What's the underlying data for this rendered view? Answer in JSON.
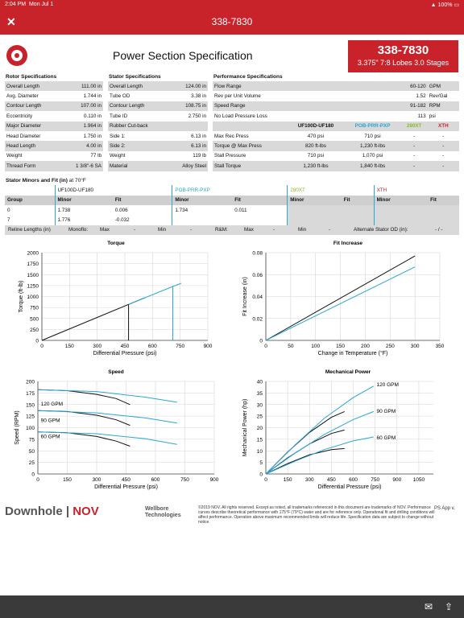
{
  "status": {
    "time": "2:04 PM",
    "date": "Mon Jul 1",
    "battery": "100%"
  },
  "nav": {
    "title": "338-7830",
    "close_icon": "close-icon"
  },
  "header": {
    "title": "Power Section Specification",
    "part_number": "338-7830",
    "summary": "3.375\" 7:8 Lobes 3.0 Stages"
  },
  "rotor": {
    "title": "Rotor Specifications",
    "rows": [
      [
        "Overall Length",
        "111.00 in"
      ],
      [
        "Avg. Diameter",
        "1.744 in"
      ],
      [
        "Contour Length",
        "107.00 in"
      ],
      [
        "Eccentricity",
        "0.110 in"
      ],
      [
        "Major Diameter",
        "1.964 in"
      ],
      [
        "Head Diameter",
        "1.750 in"
      ],
      [
        "Head Length",
        "4.00 in"
      ],
      [
        "Weight",
        "77 lb"
      ],
      [
        "Thread Form",
        "1 3/8\"-6 SA"
      ]
    ]
  },
  "stator": {
    "title": "Stator Specifications",
    "rows": [
      [
        "Overall Length",
        "124.00 in"
      ],
      [
        "Tube OD",
        "3.38 in"
      ],
      [
        "Contour Length",
        "108.75 in"
      ],
      [
        "Tube ID",
        "2.750 in"
      ],
      [
        "Rubber Cut-back",
        ""
      ],
      [
        "Side 1:",
        "6.13 in"
      ],
      [
        "Side 2:",
        "6.13 in"
      ],
      [
        "Weight",
        "119 lb"
      ],
      [
        "Material",
        "Alloy Steel"
      ]
    ]
  },
  "performance": {
    "title": "Performance Specifications",
    "rows": [
      [
        "Flow Range",
        "60-120",
        "GPM"
      ],
      [
        "Rev per Unit Volume",
        "1.52",
        "Rev/Gal"
      ],
      [
        "Speed Range",
        "91-182",
        "RPM"
      ],
      [
        "No Load Pressure Loss",
        "113",
        "psi"
      ]
    ],
    "elastomers": [
      "UF100D-UF180",
      "POB-PRR-PXP",
      "280XT",
      "XTH"
    ],
    "elastomer_colors": [
      "#111111",
      "#29a7d6",
      "#8ab82e",
      "#c8232b"
    ],
    "rows2": [
      [
        "Max Rec Press",
        "470 psi",
        "710 psi",
        "-",
        "-"
      ],
      [
        "Torque @ Max Press",
        "820 ft-lbs",
        "1,230 ft-lbs",
        "-",
        "-"
      ],
      [
        "Stall Pressure",
        "710 psi",
        "1,070 psi",
        "-",
        "-"
      ],
      [
        "Stall Torque",
        "1,230 ft-lbs",
        "1,840 ft-lbs",
        "-",
        "-"
      ]
    ]
  },
  "stator_minors": {
    "title": "Stator Minors and Fit (in)",
    "subtitle": "at 70°F",
    "col_group": "Group",
    "col_minor": "Minor",
    "col_fit": "Fit",
    "rows": [
      [
        "0",
        "1.738",
        "0.006",
        "1.734",
        "0.011",
        "",
        "",
        "",
        ""
      ],
      [
        "7",
        "1.776",
        "-0.032",
        "",
        "",
        "",
        "",
        "",
        ""
      ]
    ],
    "reline": {
      "label": "Reline Lengths (in)",
      "monoflo": "Monoflo:",
      "max1": "Max",
      "v1": "-",
      "min1": "Min",
      "v2": "-",
      "rm": "R&M:",
      "max2": "Max",
      "v3": "-",
      "min2": "Min",
      "v4": "-",
      "alt": "Alternate Stator OD (in):",
      "alt_v": "- / -"
    }
  },
  "chart_data": [
    {
      "type": "line",
      "title": "Torque",
      "xlabel": "Differential Pressure (psi)",
      "ylabel": "Torque (ft-lb)",
      "xlim": [
        0,
        900
      ],
      "ylim": [
        0,
        2000
      ],
      "xticks": [
        0,
        150,
        300,
        450,
        600,
        750,
        900
      ],
      "yticks": [
        0,
        250,
        500,
        750,
        1000,
        1250,
        1500,
        1750,
        2000
      ],
      "series": [
        {
          "color": "#111111",
          "points": [
            [
              0,
              0
            ],
            [
              470,
              820
            ],
            [
              560,
              975
            ]
          ],
          "vline": 470
        },
        {
          "color": "#29a7d6",
          "points": [
            [
              470,
              820
            ],
            [
              710,
              1230
            ],
            [
              755,
              1300
            ]
          ],
          "vline": 710
        }
      ]
    },
    {
      "type": "line",
      "title": "Fit Increase",
      "xlabel": "Change in Temperature (°F)",
      "ylabel": "Fit Increase (in)",
      "xlim": [
        0,
        350
      ],
      "ylim": [
        0,
        0.08
      ],
      "xticks": [
        0,
        50,
        100,
        150,
        200,
        250,
        300,
        350
      ],
      "yticks": [
        0,
        0.02,
        0.04,
        0.06,
        0.08
      ],
      "series": [
        {
          "color": "#111111",
          "points": [
            [
              0,
              0
            ],
            [
              300,
              0.077
            ]
          ]
        },
        {
          "color": "#29a7d6",
          "points": [
            [
              0,
              0
            ],
            [
              300,
              0.067
            ]
          ]
        }
      ]
    },
    {
      "type": "line",
      "title": "Speed",
      "xlabel": "Differential Pressure (psi)",
      "ylabel": "Speed (RPM)",
      "xlim": [
        0,
        900
      ],
      "ylim": [
        0,
        200
      ],
      "xticks": [
        0,
        150,
        300,
        450,
        600,
        750,
        900
      ],
      "yticks": [
        0,
        25,
        50,
        75,
        100,
        125,
        150,
        175,
        200
      ],
      "labels": [
        {
          "text": "120 GPM",
          "x": 15,
          "y": 148
        },
        {
          "text": "90 GPM",
          "x": 15,
          "y": 112
        },
        {
          "text": "60 GPM",
          "x": 15,
          "y": 77
        }
      ],
      "series": [
        {
          "color": "#111111",
          "points": [
            [
              0,
              182
            ],
            [
              150,
              180
            ],
            [
              300,
              172
            ],
            [
              400,
              163
            ],
            [
              470,
              150
            ]
          ]
        },
        {
          "color": "#111111",
          "points": [
            [
              0,
              137
            ],
            [
              150,
              135
            ],
            [
              300,
              127
            ],
            [
              400,
              117
            ],
            [
              470,
              105
            ]
          ]
        },
        {
          "color": "#111111",
          "points": [
            [
              0,
              91
            ],
            [
              150,
              89
            ],
            [
              300,
              81
            ],
            [
              400,
              71
            ],
            [
              470,
              60
            ]
          ]
        },
        {
          "color": "#29a7d6",
          "points": [
            [
              0,
              182
            ],
            [
              300,
              178
            ],
            [
              550,
              166
            ],
            [
              710,
              155
            ]
          ]
        },
        {
          "color": "#29a7d6",
          "points": [
            [
              0,
              137
            ],
            [
              300,
              132
            ],
            [
              550,
              121
            ],
            [
              710,
              110
            ]
          ]
        },
        {
          "color": "#29a7d6",
          "points": [
            [
              0,
              91
            ],
            [
              300,
              87
            ],
            [
              550,
              76
            ],
            [
              710,
              64
            ]
          ]
        }
      ]
    },
    {
      "type": "line",
      "title": "Mechanical Power",
      "xlabel": "Differential Pressure (psi)",
      "ylabel": "Mechanical Power (hp)",
      "xlim": [
        0,
        1150
      ],
      "ylim": [
        0,
        40
      ],
      "xticks": [
        0,
        150,
        300,
        450,
        600,
        750,
        900,
        1050
      ],
      "yticks": [
        0,
        5,
        10,
        15,
        20,
        25,
        30,
        35,
        40
      ],
      "labels": [
        {
          "text": "120 GPM",
          "x": 760,
          "y": 38
        },
        {
          "text": "90 GPM",
          "x": 760,
          "y": 26.5
        },
        {
          "text": "60 GPM",
          "x": 760,
          "y": 15
        }
      ],
      "series": [
        {
          "color": "#111111",
          "points": [
            [
              0,
              0
            ],
            [
              150,
              9.5
            ],
            [
              300,
              18
            ],
            [
              450,
              24.5
            ],
            [
              540,
              27
            ]
          ]
        },
        {
          "color": "#111111",
          "points": [
            [
              0,
              0
            ],
            [
              150,
              7
            ],
            [
              300,
              13
            ],
            [
              450,
              17.5
            ],
            [
              540,
              19
            ]
          ]
        },
        {
          "color": "#111111",
          "points": [
            [
              0,
              0
            ],
            [
              150,
              4.5
            ],
            [
              300,
              8.3
            ],
            [
              450,
              10.5
            ],
            [
              540,
              11
            ]
          ]
        },
        {
          "color": "#29a7d6",
          "points": [
            [
              0,
              0
            ],
            [
              200,
              12.5
            ],
            [
              400,
              24
            ],
            [
              600,
              33
            ],
            [
              740,
              38
            ]
          ]
        },
        {
          "color": "#29a7d6",
          "points": [
            [
              0,
              0
            ],
            [
              200,
              9
            ],
            [
              400,
              17
            ],
            [
              600,
              23.5
            ],
            [
              740,
              27
            ]
          ]
        },
        {
          "color": "#29a7d6",
          "points": [
            [
              0,
              0
            ],
            [
              200,
              5.5
            ],
            [
              400,
              10.5
            ],
            [
              600,
              14.3
            ],
            [
              740,
              16
            ]
          ]
        }
      ]
    }
  ],
  "footer": {
    "brand1": "Downhole",
    "brand2": "NOV",
    "brand3a": "Wellbore",
    "brand3b": "Technologies",
    "legal": "©2019 NOV. All rights reserved. Except as noted, all trademarks referenced in this document are trademarks of NOV. Performance curves describe theoretical performance with 175°F (79°C) water and are for reference only. Operational fit and drilling conditions will affect performance. Operation above maximum recommended limits will reduce life. Specification data are subject to change without notice.",
    "app": "PS App v."
  },
  "toolbar": {
    "mail_icon": "mail-icon",
    "share_icon": "share-icon"
  }
}
